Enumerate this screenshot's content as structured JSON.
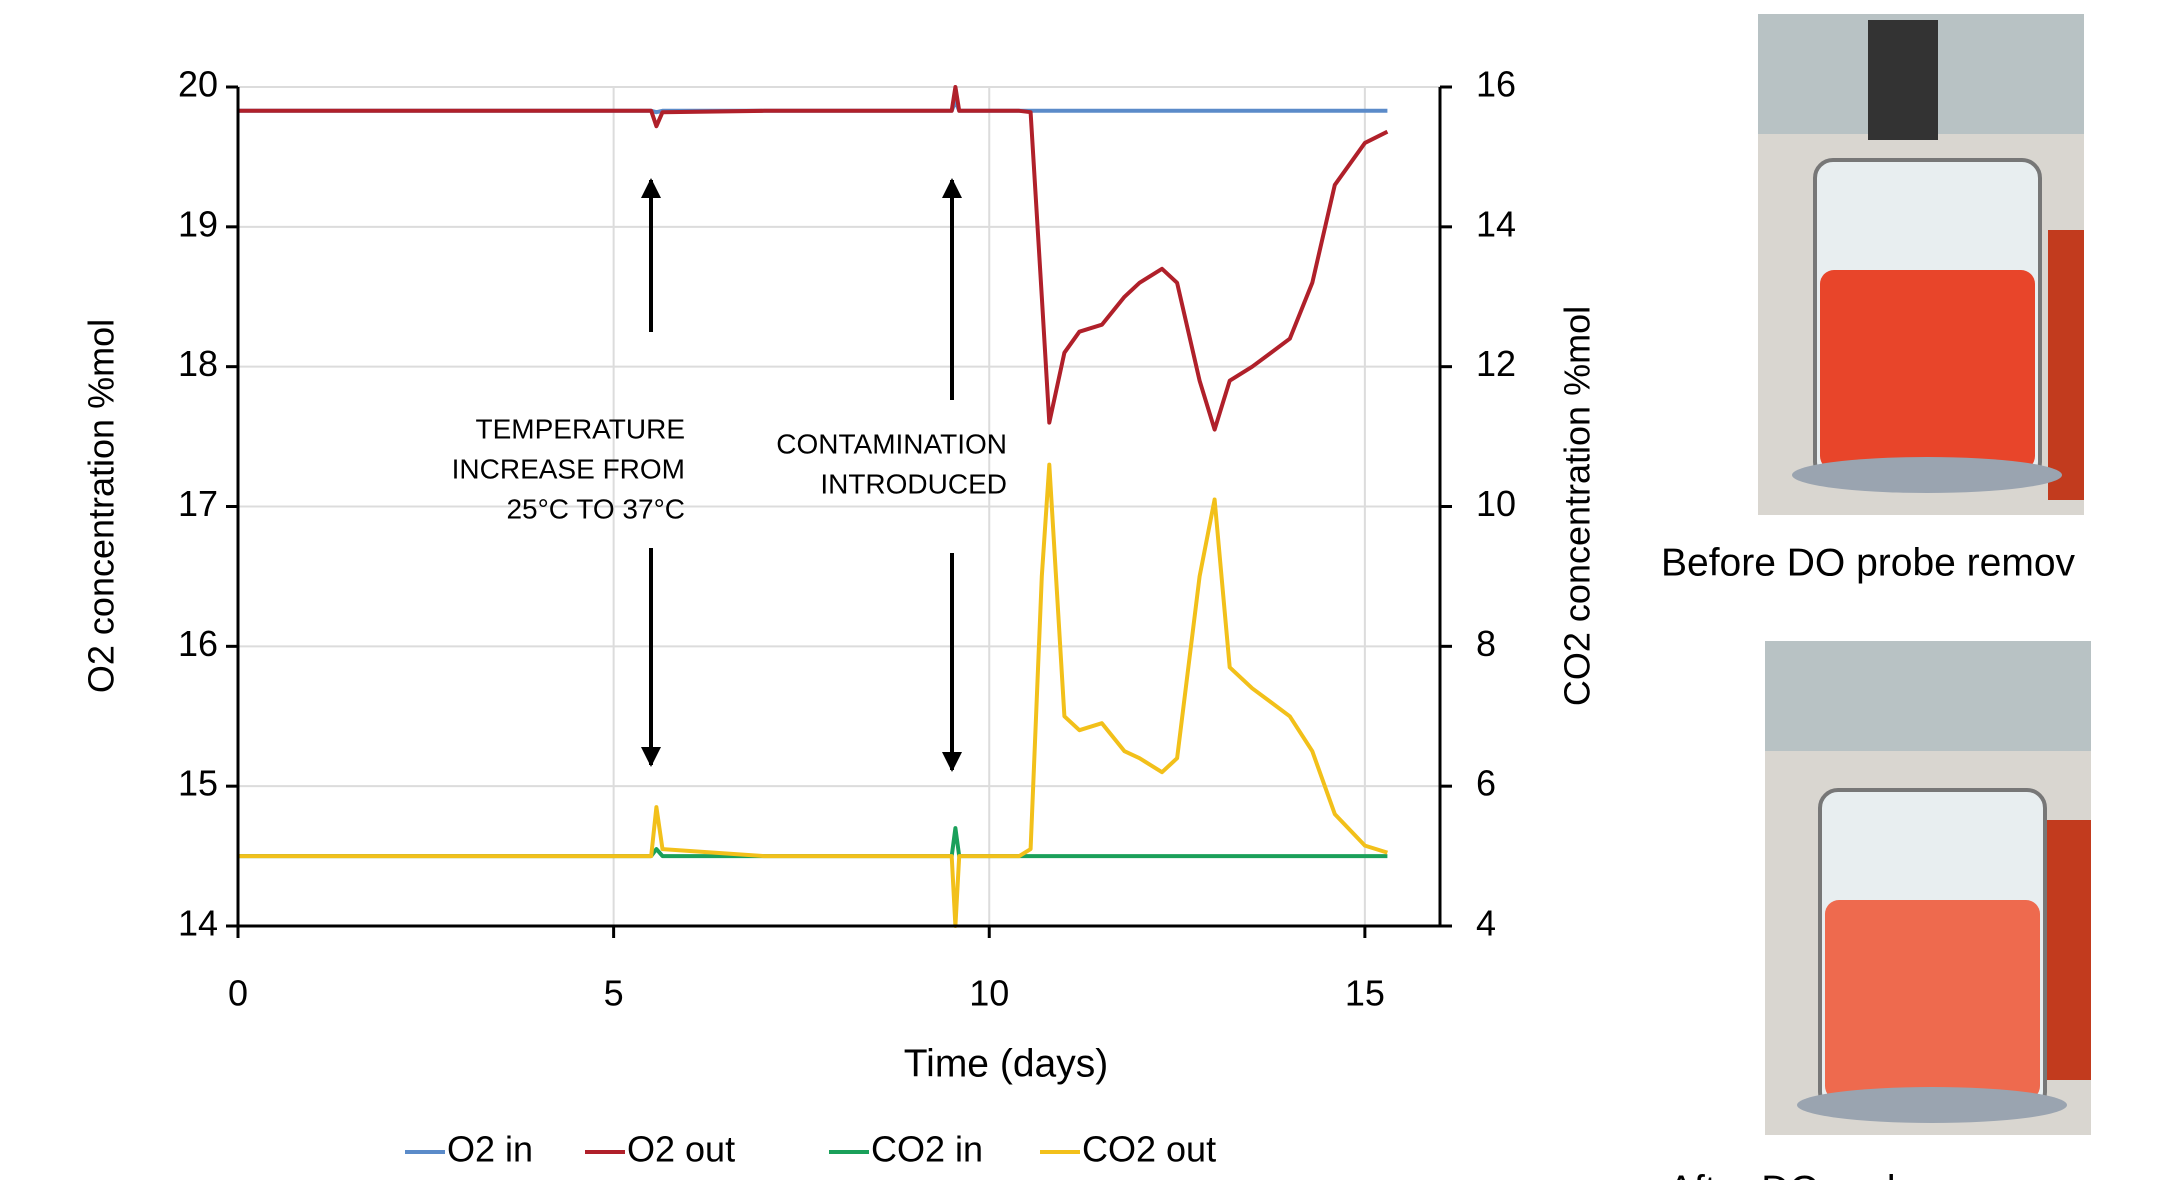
{
  "chart_data": {
    "type": "line",
    "xlabel": "Time (days)",
    "ylabel": "O2 concentration  %mol",
    "y2label": "CO2 concentration  %mol",
    "x": [
      0,
      2,
      4,
      5.5,
      5.57,
      5.65,
      7,
      9.5,
      9.55,
      9.6,
      10.4,
      10.55,
      10.7,
      10.8,
      11.0,
      11.2,
      11.5,
      11.8,
      12.0,
      12.3,
      12.5,
      12.8,
      13.0,
      13.2,
      13.5,
      14.0,
      14.3,
      14.6,
      15.0,
      15.3
    ],
    "xlim": [
      0,
      16
    ],
    "xticks": [
      0,
      5,
      10,
      15
    ],
    "ylim": [
      14,
      20
    ],
    "yticks": [
      14,
      15,
      16,
      17,
      18,
      19,
      20
    ],
    "y2lim": [
      4,
      16
    ],
    "y2ticks": [
      4,
      6,
      8,
      10,
      12,
      14,
      16
    ],
    "grid": true,
    "legend": "bottom",
    "series": [
      {
        "name": "O2 in",
        "color": "#5b8bc9",
        "values": [
          19.83,
          19.83,
          19.83,
          19.83,
          19.82,
          19.83,
          19.83,
          19.83,
          19.9,
          19.83,
          19.83,
          19.83,
          19.83,
          19.83,
          19.83,
          19.83,
          19.83,
          19.83,
          19.83,
          19.83,
          19.83,
          19.83,
          19.83,
          19.83,
          19.83,
          19.83,
          19.83,
          19.83,
          19.83,
          19.83
        ]
      },
      {
        "name": "O2 out",
        "color": "#b0202a",
        "values": [
          19.83,
          19.83,
          19.83,
          19.83,
          19.72,
          19.82,
          19.83,
          19.83,
          20.0,
          19.83,
          19.83,
          19.82,
          18.5,
          17.6,
          18.1,
          18.25,
          18.3,
          18.5,
          18.6,
          18.7,
          18.6,
          17.9,
          17.55,
          17.9,
          18.0,
          18.2,
          18.6,
          19.3,
          19.6,
          19.68
        ]
      },
      {
        "name": "CO2 in",
        "color": "#1aa05a",
        "axis": "y2",
        "values": [
          5.0,
          5.0,
          5.0,
          5.0,
          5.1,
          5.0,
          5.0,
          5.0,
          5.4,
          5.0,
          5.0,
          5.0,
          5.0,
          5.0,
          5.0,
          5.0,
          5.0,
          5.0,
          5.0,
          5.0,
          5.0,
          5.0,
          5.0,
          5.0,
          5.0,
          5.0,
          5.0,
          5.0,
          5.0,
          5.0
        ]
      },
      {
        "name": "CO2 out",
        "color": "#f2c01a",
        "axis": "y2",
        "values": [
          5.0,
          5.0,
          5.0,
          5.0,
          5.7,
          5.1,
          5.0,
          5.0,
          4.0,
          5.0,
          5.0,
          5.1,
          9.0,
          10.6,
          7.0,
          6.8,
          6.9,
          6.5,
          6.4,
          6.2,
          6.4,
          9.0,
          10.1,
          7.7,
          7.4,
          7.0,
          6.5,
          5.6,
          5.15,
          5.05
        ]
      }
    ],
    "annotations": [
      {
        "text": [
          "TEMPERATURE",
          "INCREASE FROM",
          "25°C TO 37°C"
        ]
      },
      {
        "text": [
          "CONTAMINATION",
          "INTRODUCED"
        ]
      }
    ]
  },
  "photos": [
    {
      "caption": "Before DO probe remov"
    },
    {
      "caption": "After DO probe"
    }
  ]
}
